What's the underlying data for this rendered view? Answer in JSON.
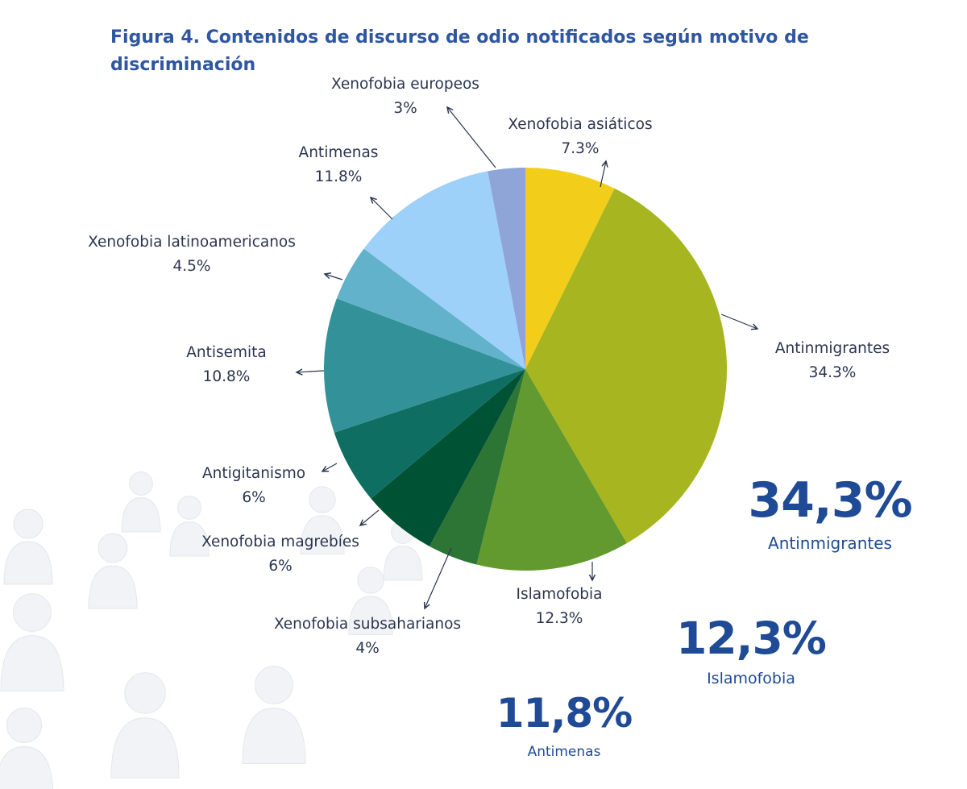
{
  "chart_data": {
    "type": "pie",
    "title": "Figura 4. Contenidos de discurso de odio notificados según motivo de discriminación",
    "start_angle": "top",
    "direction": "clockwise",
    "slices": [
      {
        "label": "Xenofobia asiáticos",
        "value": 7.3,
        "text": "7.3%",
        "color": "#F2CE1B"
      },
      {
        "label": "Antinmigrantes",
        "value": 34.3,
        "text": "34.3%",
        "color": "#A6B520"
      },
      {
        "label": "Islamofobia",
        "value": 12.3,
        "text": "12.3%",
        "color": "#629A2F"
      },
      {
        "label": "Xenofobia subsaharianos",
        "value": 4,
        "text": "4%",
        "color": "#2C7535"
      },
      {
        "label": "Xenofobia magrebíes",
        "value": 6,
        "text": "6%",
        "color": "#005235"
      },
      {
        "label": "Antigitanismo",
        "value": 6,
        "text": "6%",
        "color": "#0F6E62"
      },
      {
        "label": "Antisemita",
        "value": 10.8,
        "text": "10.8%",
        "color": "#339299"
      },
      {
        "label": "Xenofobia latinoamericanos",
        "value": 4.5,
        "text": "4.5%",
        "color": "#63B2CC"
      },
      {
        "label": "Antimenas",
        "value": 11.8,
        "text": "11.8%",
        "color": "#9DD1FA"
      },
      {
        "label": "Xenofobia europeos",
        "value": 3,
        "text": "3%",
        "color": "#8FA5D8"
      }
    ],
    "highlights": [
      {
        "value": "34,3%",
        "label": "Antinmigrantes"
      },
      {
        "value": "12,3%",
        "label": "Islamofobia"
      },
      {
        "value": "11,8%",
        "label": "Antimenas"
      }
    ]
  },
  "colors": {
    "title": "#2F56A0",
    "highlight": "#1F4B96",
    "label": "#2B3550"
  }
}
